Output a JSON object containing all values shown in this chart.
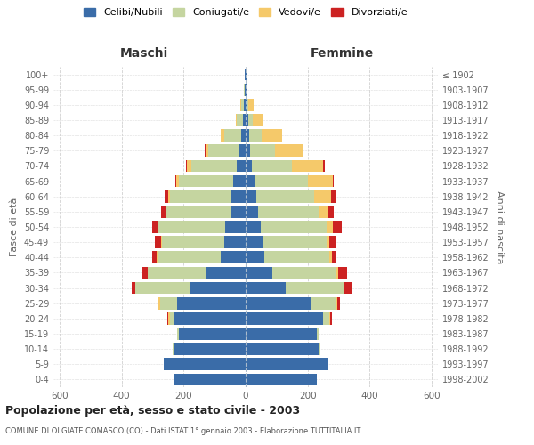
{
  "age_groups": [
    "0-4",
    "5-9",
    "10-14",
    "15-19",
    "20-24",
    "25-29",
    "30-34",
    "35-39",
    "40-44",
    "45-49",
    "50-54",
    "55-59",
    "60-64",
    "65-69",
    "70-74",
    "75-79",
    "80-84",
    "85-89",
    "90-94",
    "95-99",
    "100+"
  ],
  "birth_years": [
    "1998-2002",
    "1993-1997",
    "1988-1992",
    "1983-1987",
    "1978-1982",
    "1973-1977",
    "1968-1972",
    "1963-1967",
    "1958-1962",
    "1953-1957",
    "1948-1952",
    "1943-1947",
    "1938-1942",
    "1933-1937",
    "1928-1932",
    "1923-1927",
    "1918-1922",
    "1913-1917",
    "1908-1912",
    "1903-1907",
    "≤ 1902"
  ],
  "maschi": {
    "celibi": [
      230,
      265,
      230,
      215,
      230,
      220,
      180,
      130,
      80,
      70,
      65,
      50,
      45,
      40,
      30,
      20,
      15,
      8,
      5,
      3,
      2
    ],
    "coniugati": [
      0,
      0,
      5,
      5,
      15,
      55,
      175,
      185,
      205,
      200,
      215,
      205,
      200,
      175,
      145,
      100,
      55,
      20,
      8,
      2,
      1
    ],
    "vedovi": [
      0,
      0,
      0,
      0,
      5,
      5,
      2,
      2,
      2,
      2,
      3,
      3,
      5,
      10,
      15,
      10,
      10,
      5,
      3,
      1,
      0
    ],
    "divorziati": [
      0,
      0,
      0,
      0,
      3,
      3,
      10,
      15,
      15,
      20,
      18,
      15,
      10,
      3,
      3,
      2,
      0,
      0,
      0,
      0,
      0
    ]
  },
  "femmine": {
    "nubili": [
      230,
      265,
      235,
      230,
      250,
      210,
      130,
      85,
      60,
      55,
      50,
      40,
      35,
      30,
      20,
      15,
      12,
      8,
      5,
      3,
      2
    ],
    "coniugate": [
      0,
      0,
      3,
      5,
      20,
      80,
      185,
      205,
      210,
      205,
      210,
      195,
      185,
      170,
      130,
      80,
      40,
      15,
      5,
      1,
      0
    ],
    "vedove": [
      0,
      0,
      0,
      0,
      3,
      5,
      5,
      8,
      8,
      10,
      20,
      30,
      55,
      80,
      100,
      90,
      65,
      35,
      15,
      3,
      1
    ],
    "divorziate": [
      0,
      0,
      0,
      0,
      5,
      10,
      25,
      30,
      15,
      20,
      30,
      18,
      15,
      5,
      5,
      2,
      0,
      0,
      0,
      0,
      0
    ]
  },
  "colors": {
    "celibi": "#3a6ca8",
    "coniugati": "#c5d5a0",
    "vedovi": "#f5c96a",
    "divorziati": "#cc2222"
  },
  "title": "Popolazione per età, sesso e stato civile - 2003",
  "subtitle": "COMUNE DI OLGIATE COMASCO (CO) - Dati ISTAT 1° gennaio 2003 - Elaborazione TUTTITALIA.IT",
  "xlabel_left": "Maschi",
  "xlabel_right": "Femmine",
  "ylabel_left": "Fasce di età",
  "ylabel_right": "Anni di nascita",
  "xlim": 620,
  "legend_labels": [
    "Celibi/Nubili",
    "Coniugati/e",
    "Vedovi/e",
    "Divorziati/e"
  ],
  "background_color": "#ffffff",
  "grid_color": "#cccccc"
}
